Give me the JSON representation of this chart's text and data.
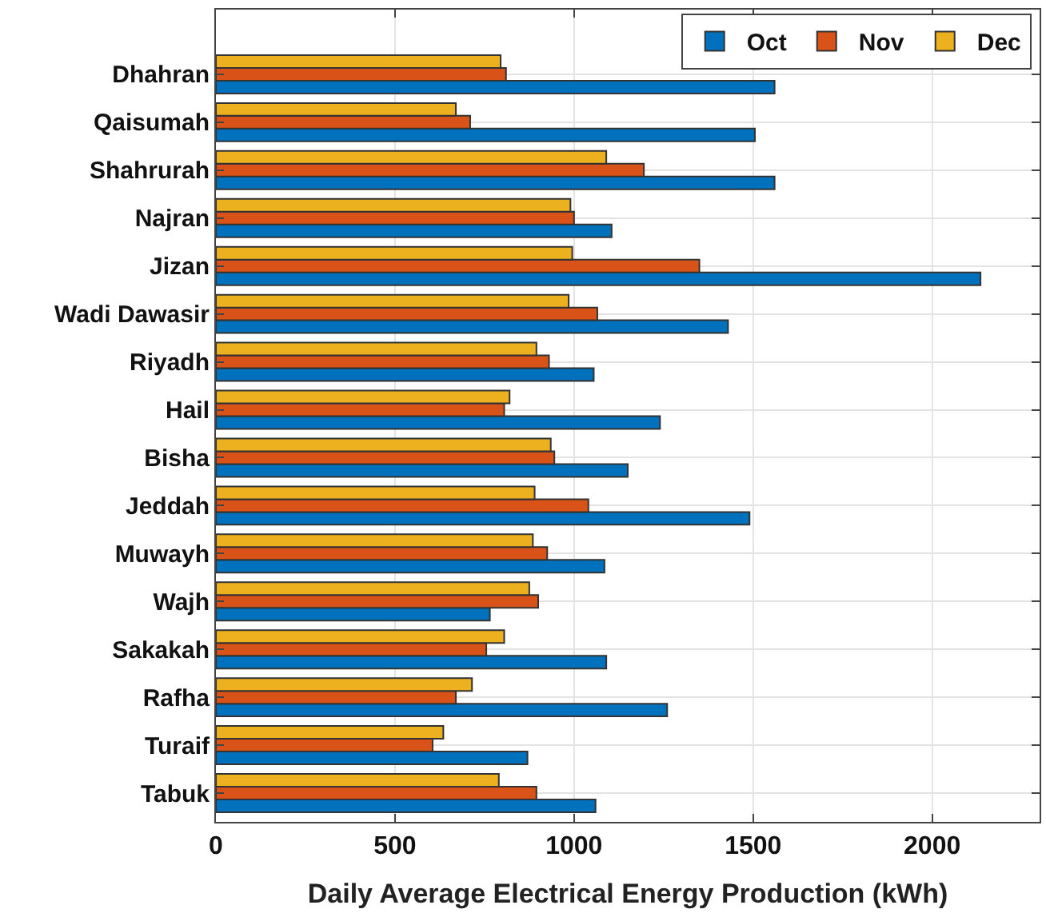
{
  "chart_data": {
    "type": "bar",
    "orientation": "horizontal",
    "xlabel": "Daily Average Electrical Energy Production (kWh)",
    "categories": [
      "Dhahran",
      "Qaisumah",
      "Shahrurah",
      "Najran",
      "Jizan",
      "Wadi Dawasir",
      "Riyadh",
      "Hail",
      "Bisha",
      "Jeddah",
      "Muwayh",
      "Wajh",
      "Sakakah",
      "Rafha",
      "Turaif",
      "Tabuk"
    ],
    "series": [
      {
        "name": "Oct",
        "color": "#0072bd",
        "values": [
          1560,
          1505,
          1560,
          1105,
          2135,
          1430,
          1055,
          1240,
          1150,
          1490,
          1085,
          765,
          1090,
          1260,
          870,
          1060
        ]
      },
      {
        "name": "Nov",
        "color": "#d95319",
        "values": [
          810,
          710,
          1195,
          1000,
          1350,
          1065,
          930,
          805,
          945,
          1040,
          925,
          900,
          755,
          670,
          605,
          895
        ]
      },
      {
        "name": "Dec",
        "color": "#edb120",
        "values": [
          795,
          670,
          1090,
          990,
          995,
          985,
          895,
          820,
          935,
          890,
          885,
          875,
          805,
          715,
          635,
          790
        ]
      }
    ],
    "xlim": [
      0,
      2300
    ],
    "xticks": [
      0,
      500,
      1000,
      1500,
      2000
    ],
    "grid": true,
    "legend": "top right"
  }
}
